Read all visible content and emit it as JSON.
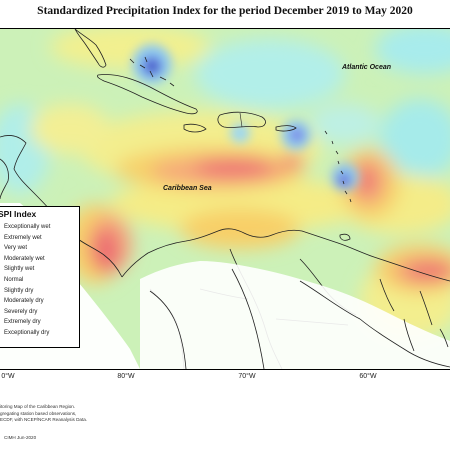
{
  "title": "Standardized Precipitation Index for the period December 2019 to May 2020",
  "labels": {
    "atlantic": "Atlantic Ocean",
    "caribbean": "Caribbean Sea"
  },
  "legend": {
    "title": "SPI Index",
    "items": [
      {
        "label": "Exceptionally wet",
        "color": "#1e3f9a"
      },
      {
        "label": "Extremely wet",
        "color": "#3f67d6"
      },
      {
        "label": "Very wet",
        "color": "#7a86e6"
      },
      {
        "label": "Moderately wet",
        "color": "#8cc9f0"
      },
      {
        "label": "Slightly wet",
        "color": "#aef0ee"
      },
      {
        "label": "Normal",
        "color": "#c8f0b4"
      },
      {
        "label": "Slightly dry",
        "color": "#f4f08a"
      },
      {
        "label": "Moderately dry",
        "color": "#f8d36a"
      },
      {
        "label": "Severely dry",
        "color": "#f6a878"
      },
      {
        "label": "Extremely dry",
        "color": "#ee6e74"
      },
      {
        "label": "Exceptionally dry",
        "color": "#c92e3a"
      }
    ]
  },
  "longitude_labels": [
    "0°W",
    "80°W",
    "70°W",
    "60°W"
  ],
  "footer_lines": [
    "itoring Map of the Caribbean Region.",
    "gregating station based observations,",
    "ECDF, with NCEP/NCAR Reanalysis Data."
  ],
  "credit": "CIMH Jun-2020"
}
